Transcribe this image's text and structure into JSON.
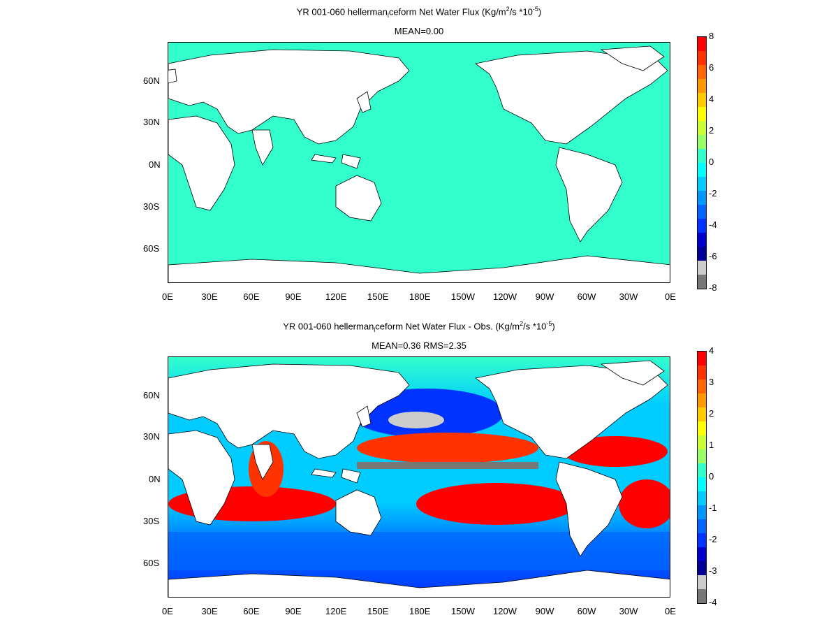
{
  "panel1": {
    "title_prefix": "YR 001-060 hellerman",
    "title_sub": "l",
    "title_mid": "ceform  Net Water Flux (Kg/m",
    "title_sup1": "2",
    "title_mid2": "/s *10",
    "title_sup2": "-5",
    "title_end": ")",
    "subtitle": "MEAN=0.00",
    "y_ticks": [
      "60N",
      "30N",
      "0N",
      "30S",
      "60S"
    ],
    "x_ticks": [
      "0E",
      "30E",
      "60E",
      "90E",
      "120E",
      "150E",
      "180E",
      "150W",
      "120W",
      "90W",
      "60W",
      "30W",
      "0E"
    ],
    "colorbar_labels": [
      "8",
      "6",
      "4",
      "2",
      "0",
      "-2",
      "-4",
      "-6",
      "-8"
    ],
    "ocean_color": "#33ffcc"
  },
  "panel2": {
    "title_prefix": "YR 001-060 hellerman",
    "title_sub": "l",
    "title_mid": "ceform  Net Water Flux - Obs. (Kg/m",
    "title_sup1": "2",
    "title_mid2": "/s *10",
    "title_sup2": "-5",
    "title_end": ")",
    "subtitle": "MEAN=0.36 RMS=2.35",
    "y_ticks": [
      "60N",
      "30N",
      "0N",
      "30S",
      "60S"
    ],
    "x_ticks": [
      "0E",
      "30E",
      "60E",
      "90E",
      "120E",
      "150E",
      "180E",
      "150W",
      "120W",
      "90W",
      "60W",
      "30W",
      "0E"
    ],
    "colorbar_labels": [
      "4",
      "3",
      "2",
      "1",
      "0",
      "-1",
      "-2",
      "-3",
      "-4"
    ]
  },
  "colorbar_colors": [
    "#ff0000",
    "#ff3300",
    "#ff6600",
    "#ff9900",
    "#ffcc00",
    "#ffff00",
    "#ccff33",
    "#99ff66",
    "#33ffcc",
    "#00ffff",
    "#00ccff",
    "#0099ff",
    "#0066ff",
    "#0033ff",
    "#0000cc",
    "#000099",
    "#cccccc",
    "#777777"
  ]
}
